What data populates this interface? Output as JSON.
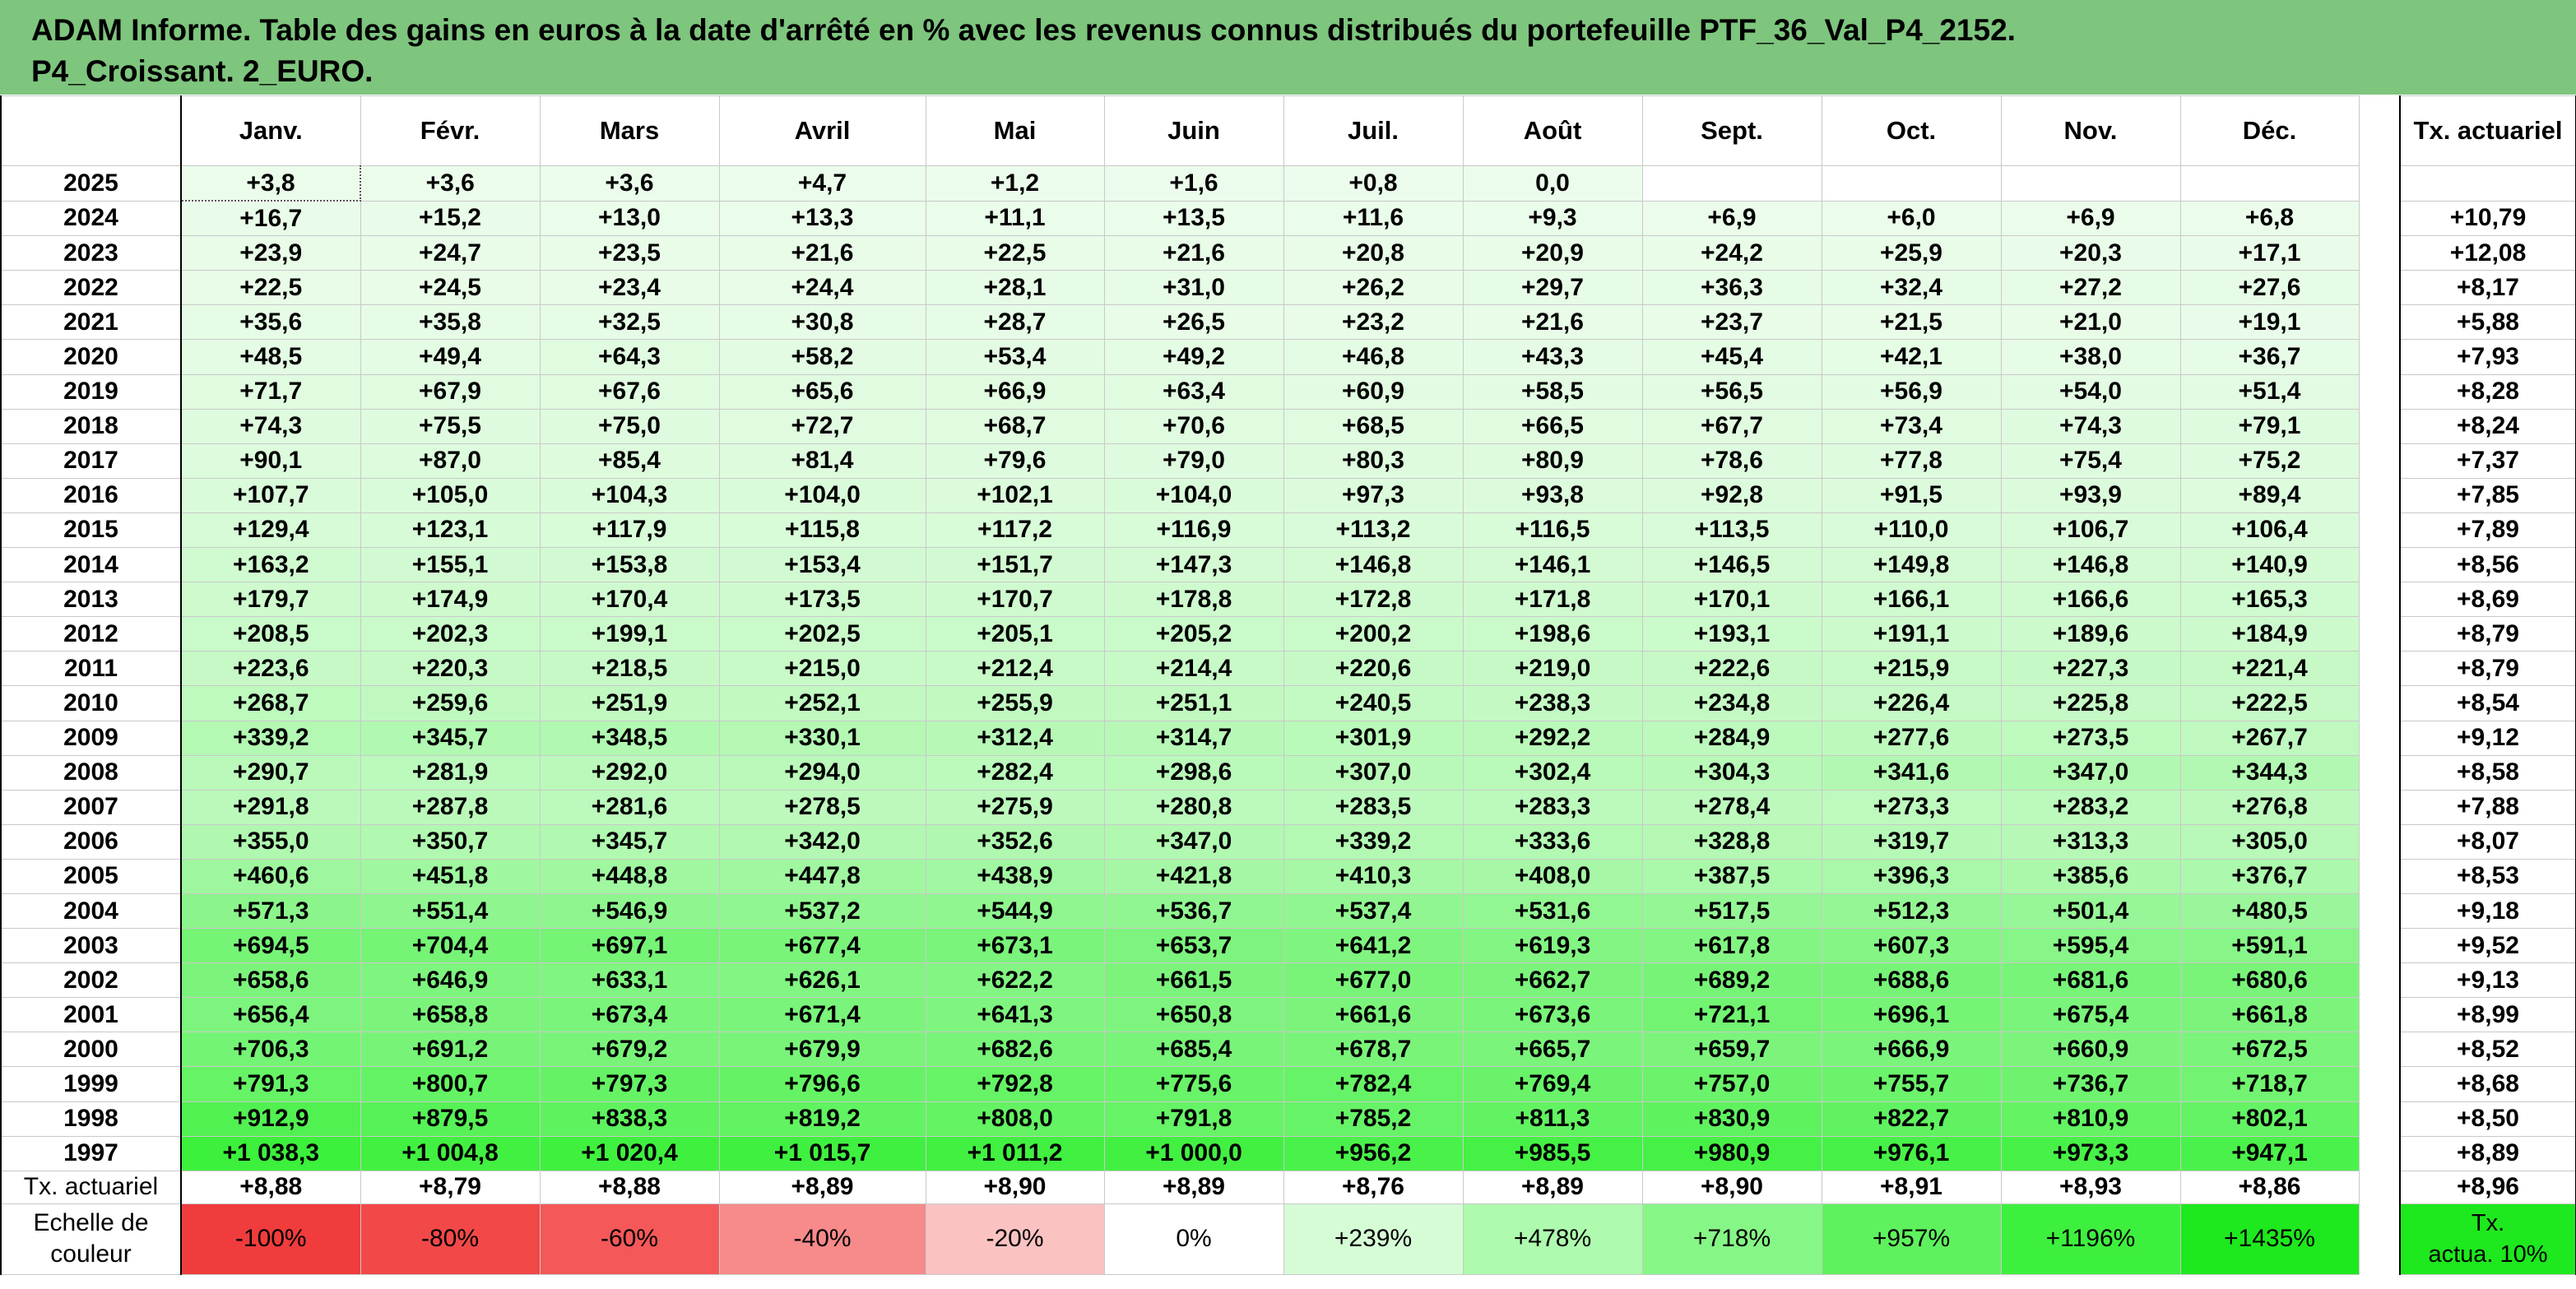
{
  "title": {
    "line1": "ADAM Informe. Table des gains en euros à la date d'arrêté en % avec les revenus connus distribués du portefeuille PTF_36_Val_P4_2152.",
    "line2": "P4_Croissant. 2_EURO."
  },
  "months": [
    "Janv.",
    "Févr.",
    "Mars",
    "Avril",
    "Mai",
    "Juin",
    "Juil.",
    "Août",
    "Sept.",
    "Oct.",
    "Nov.",
    "Déc."
  ],
  "actuarial_header": "Tx. actuariel",
  "rows": [
    {
      "year": "2025",
      "values": [
        "+3,8",
        "+3,6",
        "+3,6",
        "+4,7",
        "+1,2",
        "+1,6",
        "+0,8",
        "0,0",
        "",
        "",
        "",
        ""
      ],
      "rate": ""
    },
    {
      "year": "2024",
      "values": [
        "+16,7",
        "+15,2",
        "+13,0",
        "+13,3",
        "+11,1",
        "+13,5",
        "+11,6",
        "+9,3",
        "+6,9",
        "+6,0",
        "+6,9",
        "+6,8"
      ],
      "rate": "+10,79"
    },
    {
      "year": "2023",
      "values": [
        "+23,9",
        "+24,7",
        "+23,5",
        "+21,6",
        "+22,5",
        "+21,6",
        "+20,8",
        "+20,9",
        "+24,2",
        "+25,9",
        "+20,3",
        "+17,1"
      ],
      "rate": "+12,08"
    },
    {
      "year": "2022",
      "values": [
        "+22,5",
        "+24,5",
        "+23,4",
        "+24,4",
        "+28,1",
        "+31,0",
        "+26,2",
        "+29,7",
        "+36,3",
        "+32,4",
        "+27,2",
        "+27,6"
      ],
      "rate": "+8,17"
    },
    {
      "year": "2021",
      "values": [
        "+35,6",
        "+35,8",
        "+32,5",
        "+30,8",
        "+28,7",
        "+26,5",
        "+23,2",
        "+21,6",
        "+23,7",
        "+21,5",
        "+21,0",
        "+19,1"
      ],
      "rate": "+5,88"
    },
    {
      "year": "2020",
      "values": [
        "+48,5",
        "+49,4",
        "+64,3",
        "+58,2",
        "+53,4",
        "+49,2",
        "+46,8",
        "+43,3",
        "+45,4",
        "+42,1",
        "+38,0",
        "+36,7"
      ],
      "rate": "+7,93"
    },
    {
      "year": "2019",
      "values": [
        "+71,7",
        "+67,9",
        "+67,6",
        "+65,6",
        "+66,9",
        "+63,4",
        "+60,9",
        "+58,5",
        "+56,5",
        "+56,9",
        "+54,0",
        "+51,4"
      ],
      "rate": "+8,28"
    },
    {
      "year": "2018",
      "values": [
        "+74,3",
        "+75,5",
        "+75,0",
        "+72,7",
        "+68,7",
        "+70,6",
        "+68,5",
        "+66,5",
        "+67,7",
        "+73,4",
        "+74,3",
        "+79,1"
      ],
      "rate": "+8,24"
    },
    {
      "year": "2017",
      "values": [
        "+90,1",
        "+87,0",
        "+85,4",
        "+81,4",
        "+79,6",
        "+79,0",
        "+80,3",
        "+80,9",
        "+78,6",
        "+77,8",
        "+75,4",
        "+75,2"
      ],
      "rate": "+7,37"
    },
    {
      "year": "2016",
      "values": [
        "+107,7",
        "+105,0",
        "+104,3",
        "+104,0",
        "+102,1",
        "+104,0",
        "+97,3",
        "+93,8",
        "+92,8",
        "+91,5",
        "+93,9",
        "+89,4"
      ],
      "rate": "+7,85"
    },
    {
      "year": "2015",
      "values": [
        "+129,4",
        "+123,1",
        "+117,9",
        "+115,8",
        "+117,2",
        "+116,9",
        "+113,2",
        "+116,5",
        "+113,5",
        "+110,0",
        "+106,7",
        "+106,4"
      ],
      "rate": "+7,89"
    },
    {
      "year": "2014",
      "values": [
        "+163,2",
        "+155,1",
        "+153,8",
        "+153,4",
        "+151,7",
        "+147,3",
        "+146,8",
        "+146,1",
        "+146,5",
        "+149,8",
        "+146,8",
        "+140,9"
      ],
      "rate": "+8,56"
    },
    {
      "year": "2013",
      "values": [
        "+179,7",
        "+174,9",
        "+170,4",
        "+173,5",
        "+170,7",
        "+178,8",
        "+172,8",
        "+171,8",
        "+170,1",
        "+166,1",
        "+166,6",
        "+165,3"
      ],
      "rate": "+8,69"
    },
    {
      "year": "2012",
      "values": [
        "+208,5",
        "+202,3",
        "+199,1",
        "+202,5",
        "+205,1",
        "+205,2",
        "+200,2",
        "+198,6",
        "+193,1",
        "+191,1",
        "+189,6",
        "+184,9"
      ],
      "rate": "+8,79"
    },
    {
      "year": "2011",
      "values": [
        "+223,6",
        "+220,3",
        "+218,5",
        "+215,0",
        "+212,4",
        "+214,4",
        "+220,6",
        "+219,0",
        "+222,6",
        "+215,9",
        "+227,3",
        "+221,4"
      ],
      "rate": "+8,79"
    },
    {
      "year": "2010",
      "values": [
        "+268,7",
        "+259,6",
        "+251,9",
        "+252,1",
        "+255,9",
        "+251,1",
        "+240,5",
        "+238,3",
        "+234,8",
        "+226,4",
        "+225,8",
        "+222,5"
      ],
      "rate": "+8,54"
    },
    {
      "year": "2009",
      "values": [
        "+339,2",
        "+345,7",
        "+348,5",
        "+330,1",
        "+312,4",
        "+314,7",
        "+301,9",
        "+292,2",
        "+284,9",
        "+277,6",
        "+273,5",
        "+267,7"
      ],
      "rate": "+9,12"
    },
    {
      "year": "2008",
      "values": [
        "+290,7",
        "+281,9",
        "+292,0",
        "+294,0",
        "+282,4",
        "+298,6",
        "+307,0",
        "+302,4",
        "+304,3",
        "+341,6",
        "+347,0",
        "+344,3"
      ],
      "rate": "+8,58"
    },
    {
      "year": "2007",
      "values": [
        "+291,8",
        "+287,8",
        "+281,6",
        "+278,5",
        "+275,9",
        "+280,8",
        "+283,5",
        "+283,3",
        "+278,4",
        "+273,3",
        "+283,2",
        "+276,8"
      ],
      "rate": "+7,88"
    },
    {
      "year": "2006",
      "values": [
        "+355,0",
        "+350,7",
        "+345,7",
        "+342,0",
        "+352,6",
        "+347,0",
        "+339,2",
        "+333,6",
        "+328,8",
        "+319,7",
        "+313,3",
        "+305,0"
      ],
      "rate": "+8,07"
    },
    {
      "year": "2005",
      "values": [
        "+460,6",
        "+451,8",
        "+448,8",
        "+447,8",
        "+438,9",
        "+421,8",
        "+410,3",
        "+408,0",
        "+387,5",
        "+396,3",
        "+385,6",
        "+376,7"
      ],
      "rate": "+8,53"
    },
    {
      "year": "2004",
      "values": [
        "+571,3",
        "+551,4",
        "+546,9",
        "+537,2",
        "+544,9",
        "+536,7",
        "+537,4",
        "+531,6",
        "+517,5",
        "+512,3",
        "+501,4",
        "+480,5"
      ],
      "rate": "+9,18"
    },
    {
      "year": "2003",
      "values": [
        "+694,5",
        "+704,4",
        "+697,1",
        "+677,4",
        "+673,1",
        "+653,7",
        "+641,2",
        "+619,3",
        "+617,8",
        "+607,3",
        "+595,4",
        "+591,1"
      ],
      "rate": "+9,52"
    },
    {
      "year": "2002",
      "values": [
        "+658,6",
        "+646,9",
        "+633,1",
        "+626,1",
        "+622,2",
        "+661,5",
        "+677,0",
        "+662,7",
        "+689,2",
        "+688,6",
        "+681,6",
        "+680,6"
      ],
      "rate": "+9,13"
    },
    {
      "year": "2001",
      "values": [
        "+656,4",
        "+658,8",
        "+673,4",
        "+671,4",
        "+641,3",
        "+650,8",
        "+661,6",
        "+673,6",
        "+721,1",
        "+696,1",
        "+675,4",
        "+661,8"
      ],
      "rate": "+8,99"
    },
    {
      "year": "2000",
      "values": [
        "+706,3",
        "+691,2",
        "+679,2",
        "+679,9",
        "+682,6",
        "+685,4",
        "+678,7",
        "+665,7",
        "+659,7",
        "+666,9",
        "+660,9",
        "+672,5"
      ],
      "rate": "+8,52"
    },
    {
      "year": "1999",
      "values": [
        "+791,3",
        "+800,7",
        "+797,3",
        "+796,6",
        "+792,8",
        "+775,6",
        "+782,4",
        "+769,4",
        "+757,0",
        "+755,7",
        "+736,7",
        "+718,7"
      ],
      "rate": "+8,68"
    },
    {
      "year": "1998",
      "values": [
        "+912,9",
        "+879,5",
        "+838,3",
        "+819,2",
        "+808,0",
        "+791,8",
        "+785,2",
        "+811,3",
        "+830,9",
        "+822,7",
        "+810,9",
        "+802,1"
      ],
      "rate": "+8,50"
    },
    {
      "year": "1997",
      "values": [
        "+1 038,3",
        "+1 004,8",
        "+1 020,4",
        "+1 015,7",
        "+1 011,2",
        "+1 000,0",
        "+956,2",
        "+985,5",
        "+980,9",
        "+976,1",
        "+973,3",
        "+947,1"
      ],
      "rate": "+8,89"
    }
  ],
  "actuarial_row": {
    "label": "Tx. actuariel",
    "values": [
      "+8,88",
      "+8,79",
      "+8,88",
      "+8,89",
      "+8,90",
      "+8,89",
      "+8,76",
      "+8,89",
      "+8,90",
      "+8,91",
      "+8,93",
      "+8,86"
    ],
    "total": "+8,96"
  },
  "scale": {
    "label_line1": "Echelle de",
    "label_line2": "couleur",
    "items": [
      {
        "text": "-100%",
        "color": "#f03c3c",
        "kind": "neg"
      },
      {
        "text": "-80%",
        "color": "#f24848",
        "kind": "neg"
      },
      {
        "text": "-60%",
        "color": "#f45858",
        "kind": "neg"
      },
      {
        "text": "-40%",
        "color": "#f78a8a",
        "kind": "neg"
      },
      {
        "text": "-20%",
        "color": "#fbc2c2",
        "kind": "neg"
      },
      {
        "text": "0%",
        "color": "#ffffff",
        "kind": "zero"
      },
      {
        "text": "+239%",
        "color": "#d6fcd6",
        "kind": "pos"
      },
      {
        "text": "+478%",
        "color": "#aefaae",
        "kind": "pos"
      },
      {
        "text": "+718%",
        "color": "#86f686",
        "kind": "pos"
      },
      {
        "text": "+957%",
        "color": "#5ef25e",
        "kind": "pos"
      },
      {
        "text": "+1196%",
        "color": "#3ef03e",
        "kind": "pos"
      },
      {
        "text": "+1435%",
        "color": "#1ee81e",
        "kind": "pos"
      }
    ],
    "rate_line1": "Tx.",
    "rate_line2": "actua. 10%",
    "rate_color": "#1ee81e"
  }
}
